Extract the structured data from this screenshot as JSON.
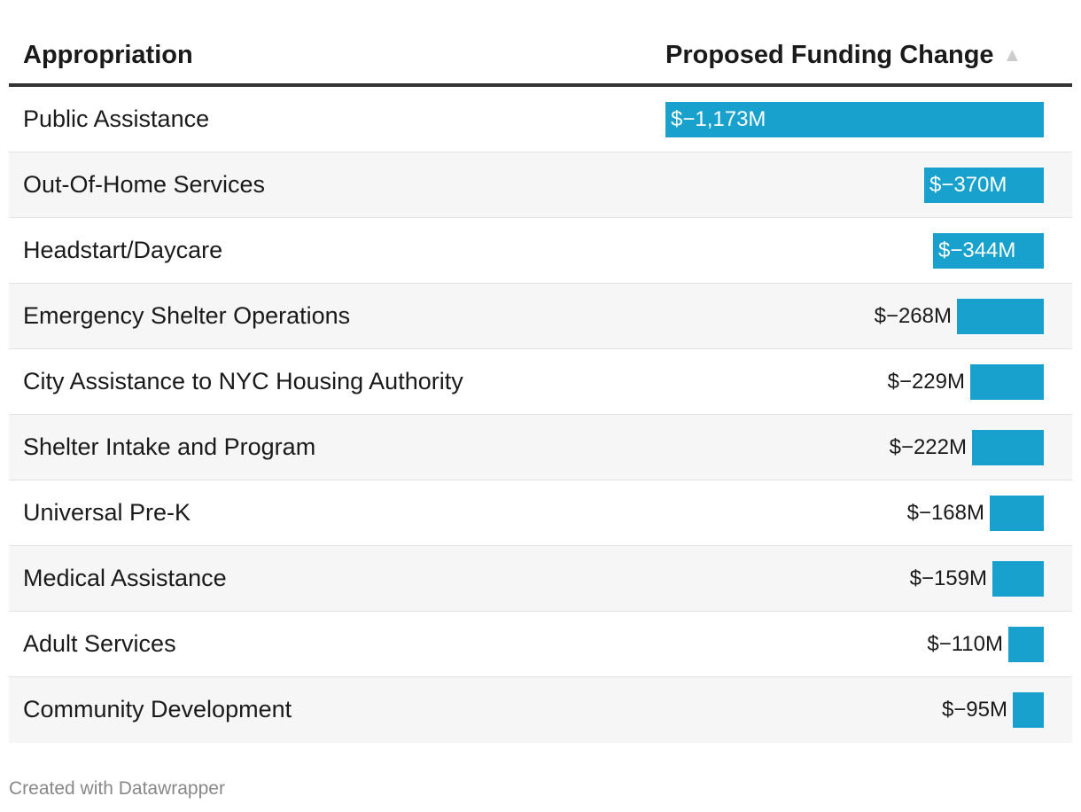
{
  "header": {
    "col1": "Appropriation",
    "col2": "Proposed Funding Change",
    "sort_icon": "▲"
  },
  "colors": {
    "bar": "#18a1cd",
    "header_rule": "#333333",
    "row_alt": "#f6f6f6"
  },
  "chart_data": {
    "type": "table",
    "columns": [
      "Appropriation",
      "Proposed Funding Change"
    ],
    "unit": "$M",
    "max_abs": 1173,
    "rows": [
      {
        "label": "Public Assistance",
        "value": -1173,
        "display": "$−1,173M"
      },
      {
        "label": "Out-Of-Home Services",
        "value": -370,
        "display": "$−370M"
      },
      {
        "label": "Headstart/Daycare",
        "value": -344,
        "display": "$−344M"
      },
      {
        "label": "Emergency Shelter Operations",
        "value": -268,
        "display": "$−268M"
      },
      {
        "label": "City Assistance to NYC Housing Authority",
        "value": -229,
        "display": "$−229M"
      },
      {
        "label": "Shelter Intake and Program",
        "value": -222,
        "display": "$−222M"
      },
      {
        "label": "Universal Pre-K",
        "value": -168,
        "display": "$−168M"
      },
      {
        "label": "Medical Assistance",
        "value": -159,
        "display": "$−159M"
      },
      {
        "label": "Adult Services",
        "value": -110,
        "display": "$−110M"
      },
      {
        "label": "Community Development",
        "value": -95,
        "display": "$−95M"
      }
    ]
  },
  "footer": {
    "credit": "Created with Datawrapper"
  }
}
